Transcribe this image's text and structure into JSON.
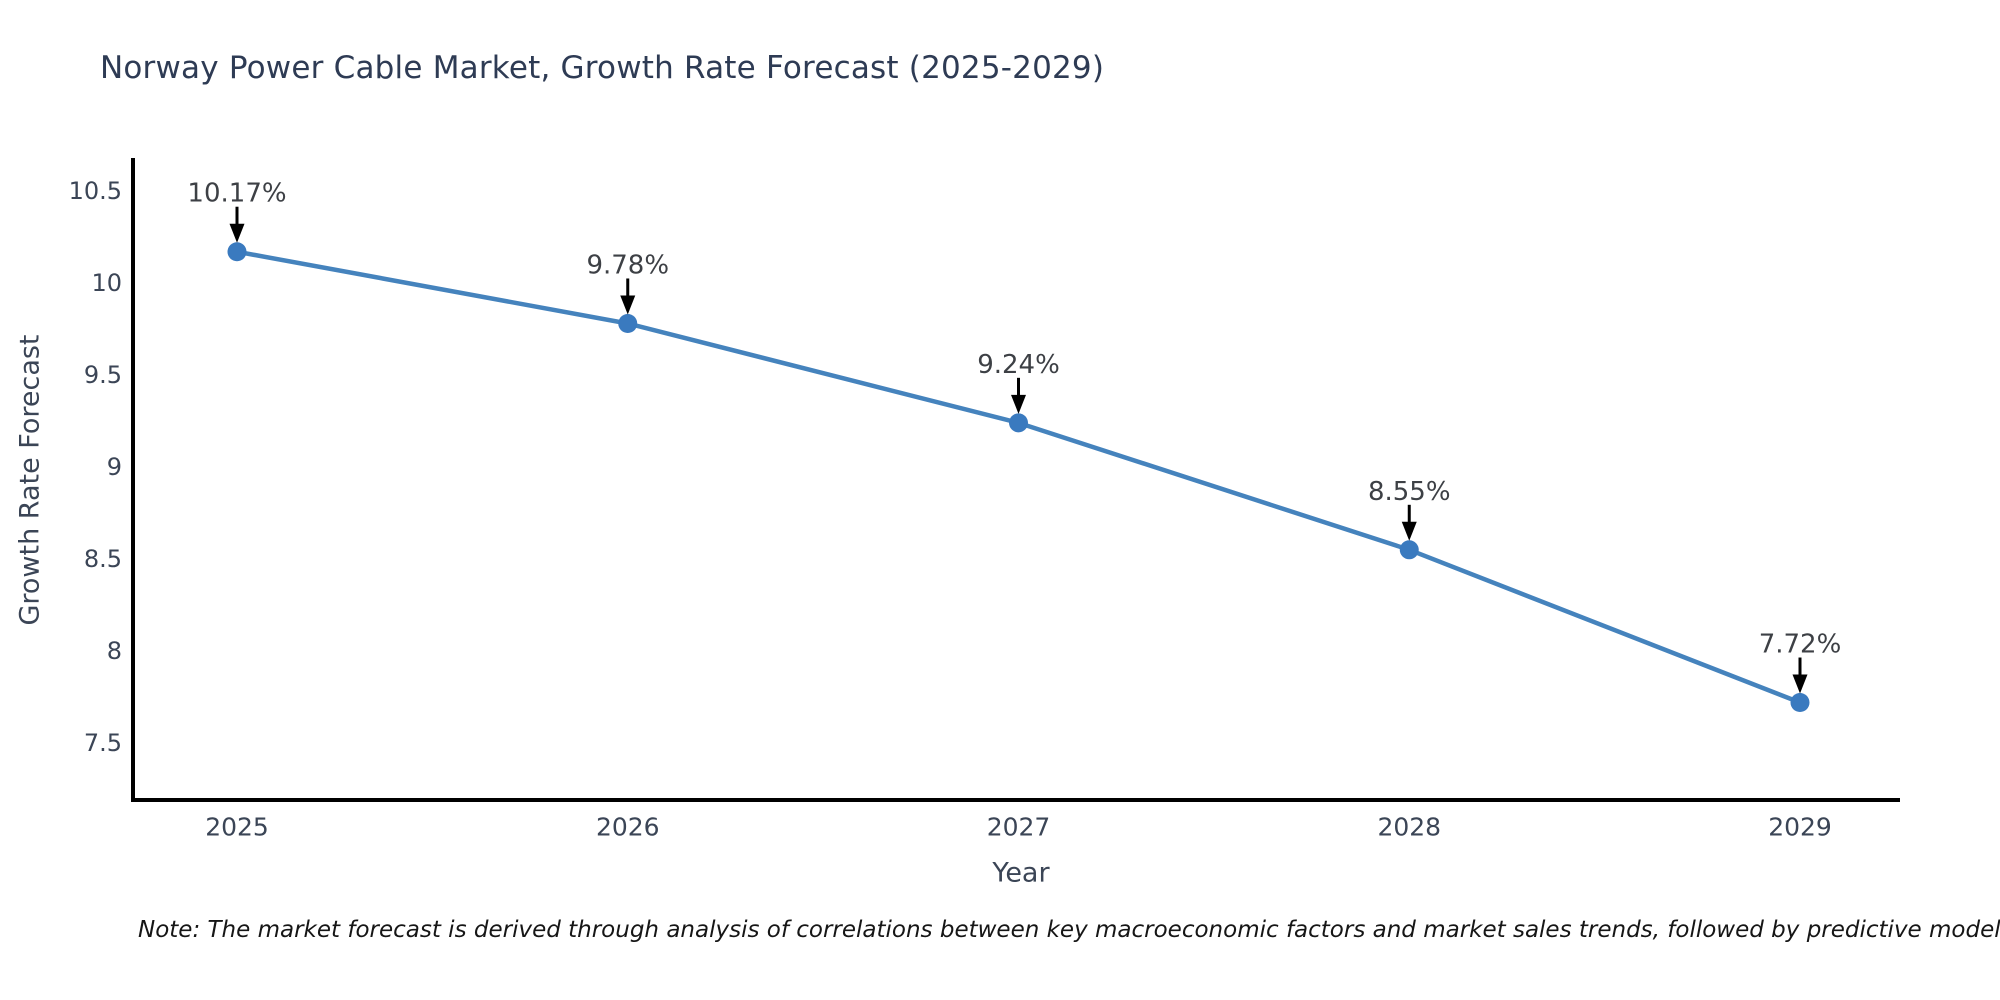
{
  "page": {
    "background": "#ffffff"
  },
  "chart": {
    "title": "Norway Power Cable Market, Growth Rate Forecast (2025-2029)",
    "xlabel": "Year",
    "ylabel": "Growth Rate Forecast",
    "note": "Note: The market forecast is derived through analysis of correlations between key macroeconomic factors and market sales trends, followed by predictive modeling to project future sales."
  },
  "chart_data": {
    "type": "line",
    "title": "Norway Power Cable Market, Growth Rate Forecast (2025-2029)",
    "xlabel": "Year",
    "ylabel": "Growth Rate Forecast",
    "x": [
      2025,
      2026,
      2027,
      2028,
      2029
    ],
    "x_tick_labels": [
      "2025",
      "2026",
      "2027",
      "2028",
      "2029"
    ],
    "series": [
      {
        "name": "Growth Rate Forecast (%)",
        "values": [
          10.17,
          9.78,
          9.24,
          8.55,
          7.72
        ]
      }
    ],
    "point_labels": [
      "10.17%",
      "9.78%",
      "9.24%",
      "8.55%",
      "7.72%"
    ],
    "y_ticks": [
      10.5,
      10,
      9.5,
      9,
      8.5,
      8,
      7.5
    ],
    "y_tick_labels": [
      "10.5",
      "10",
      "9.5",
      "9",
      "8.5",
      "8",
      "7.5"
    ],
    "ylim": [
      7.2,
      10.75
    ],
    "grid": false,
    "legend_position": "none",
    "annotation_style": "black arrow pointing down to each marker with percent label above"
  },
  "colors": {
    "line": "#4583bd",
    "marker": "#3a7abf",
    "axis_line": "#000000",
    "arrow": "#000000",
    "title_text": "#2e3b54",
    "tick_text": "#3b4556",
    "axis_title_text": "#3b4556",
    "annotation_text": "#3d4045",
    "note_text": "#161616",
    "background": "#ffffff"
  }
}
